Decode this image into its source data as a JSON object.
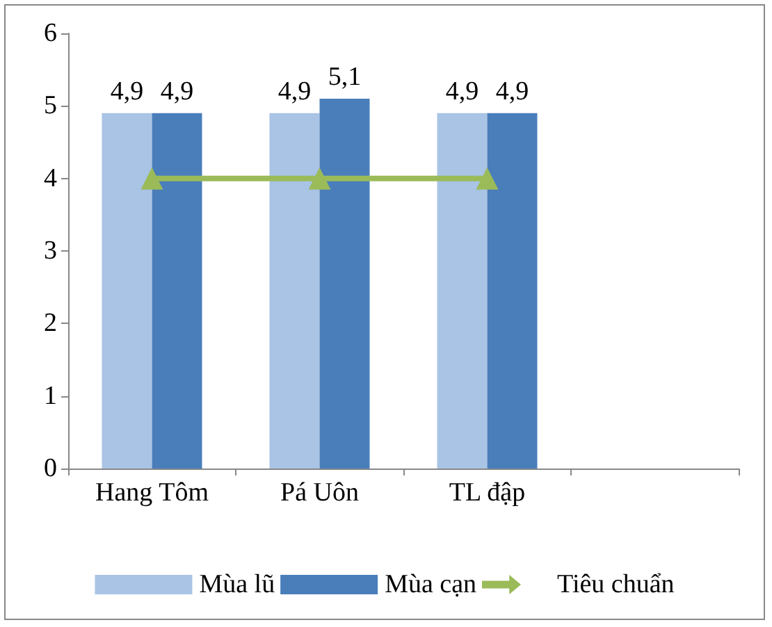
{
  "chart_data": {
    "type": "bar",
    "categories": [
      "Hang Tôm",
      "Pá Uôn",
      "TL đập",
      null
    ],
    "series": [
      {
        "name": "Mùa lũ",
        "color": "#a9c4e4",
        "values": [
          4.9,
          4.9,
          4.9,
          null
        ],
        "value_labels": [
          "4,9",
          "4,9",
          "4,9",
          null
        ]
      },
      {
        "name": "Mùa cạn",
        "color": "#4a7ebb",
        "values": [
          4.9,
          5.1,
          4.9,
          null
        ],
        "value_labels": [
          "4,9",
          "5,1",
          "4,9",
          null
        ]
      },
      {
        "name": "Tiêu chuẩn",
        "type": "line",
        "color": "#9bbb59",
        "values": [
          4,
          4,
          4,
          null
        ],
        "marker": "triangle"
      }
    ],
    "ylim": [
      0,
      6
    ],
    "yticks": [
      0,
      1,
      2,
      3,
      4,
      5,
      6
    ],
    "grid": false,
    "legend": "bottom"
  }
}
